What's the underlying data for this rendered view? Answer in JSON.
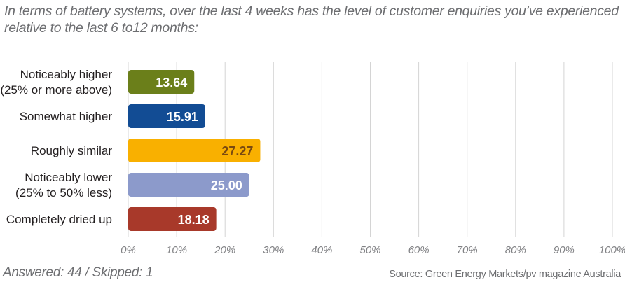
{
  "question": "In terms of battery systems, over the last 4 weeks has the level of customer enquiries you’ve experienced relative to the last 6 to12 months:",
  "footer": {
    "answered": "Answered: 44 / Skipped: 1",
    "source": "Source: Green Energy Markets/pv magazine Australia"
  },
  "chart_data": {
    "type": "bar",
    "orientation": "horizontal",
    "categories": [
      [
        "Noticeably higher",
        "(25% or more above)"
      ],
      [
        "Somewhat higher"
      ],
      [
        "Roughly similar"
      ],
      [
        "Noticeably lower",
        "(25% to 50% less)"
      ],
      [
        "Completely dried up"
      ]
    ],
    "values": [
      13.64,
      15.91,
      27.27,
      25.0,
      18.18
    ],
    "value_labels": [
      "13.64",
      "15.91",
      "27.27",
      "25.00",
      "18.18"
    ],
    "colors": [
      "#6b7f1a",
      "#124c94",
      "#f9b000",
      "#8c9acb",
      "#a8392a"
    ],
    "value_label_colors": [
      "#ffffff",
      "#ffffff",
      "#7a4a10",
      "#ffffff",
      "#ffffff"
    ],
    "xlim": [
      0,
      100
    ],
    "xticks": [
      "0%",
      "10%",
      "20%",
      "30%",
      "40%",
      "50%",
      "60%",
      "70%",
      "80%",
      "90%",
      "100%"
    ],
    "grid": true
  }
}
